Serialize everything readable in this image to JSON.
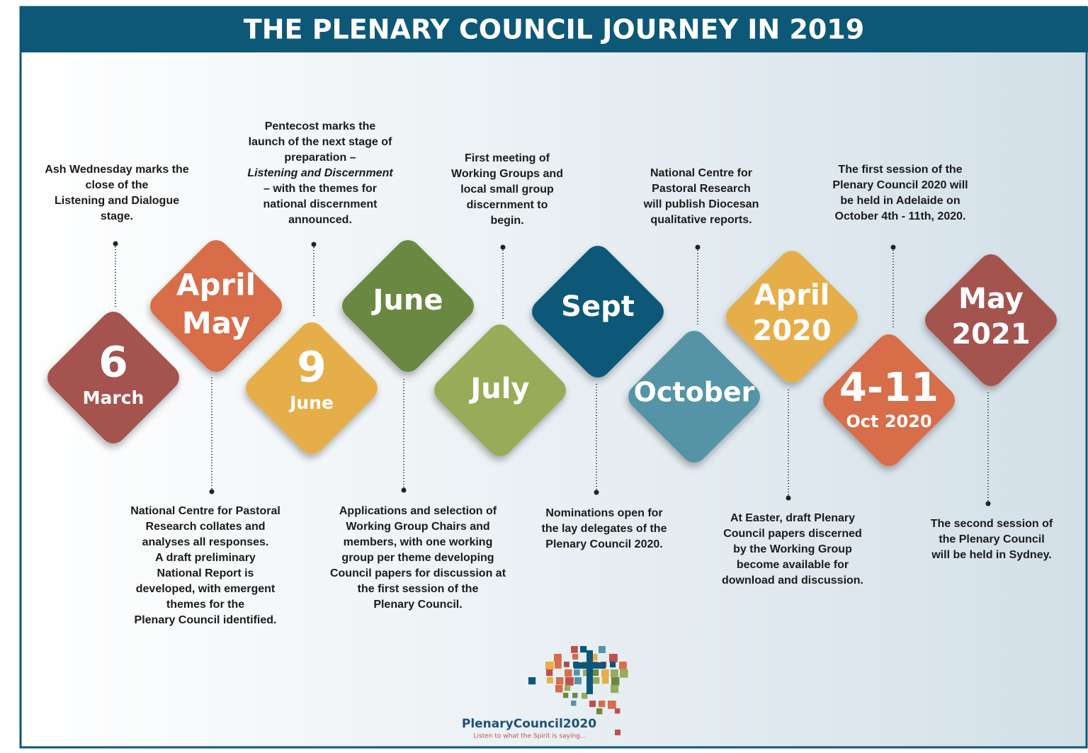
{
  "header": {
    "title": "THE PLENARY COUNCIL JOURNEY IN 2019"
  },
  "items": [
    {
      "label": [
        "6",
        "March"
      ],
      "color": "#a4524f",
      "description": [
        "Ash Wednesday marks the",
        "close of the",
        "Listening and Dialogue",
        "stage."
      ]
    },
    {
      "label": [
        "April",
        "May"
      ],
      "color": "#d76d4a",
      "description": [
        "National Centre for Pastoral",
        "Research collates and",
        "analyses all responses.",
        "A draft preliminary",
        "National Report is",
        "developed, with emergent",
        "themes for the",
        "Plenary Council identified."
      ]
    },
    {
      "label": [
        "9",
        "June"
      ],
      "color": "#e6ae48",
      "description": [
        "Pentecost marks the",
        "launch of the next stage of",
        "preparation –",
        "Listening and Discernment",
        "– with the themes for",
        "national discernment",
        "announced."
      ]
    },
    {
      "label": [
        "June"
      ],
      "color": "#6b8842",
      "description": [
        "Applications and selection of",
        "Working Group Chairs and",
        "members, with one working",
        "group per theme developing",
        "Council papers for discussion at",
        "the first session of the",
        "Plenary Council."
      ]
    },
    {
      "label": [
        "July"
      ],
      "color": "#98ab58",
      "description": [
        "First meeting of",
        "Working Groups and",
        "local small group",
        "discernment to",
        "begin."
      ]
    },
    {
      "label": [
        "Sept"
      ],
      "color": "#0d5879",
      "description": [
        "Nominations open for",
        "the lay delegates of the",
        "Plenary Council 2020."
      ]
    },
    {
      "label": [
        "October"
      ],
      "color": "#5594a6",
      "description": [
        "National Centre for",
        "Pastoral Research",
        "will publish Diocesan",
        "qualitative reports."
      ]
    },
    {
      "label": [
        "April",
        "2020"
      ],
      "color": "#e6ae48",
      "description": [
        "At Easter, draft Plenary",
        "Council papers discerned",
        "by the Working Group",
        "become available for",
        "download and discussion."
      ]
    },
    {
      "label": [
        "4-11",
        "Oct 2020"
      ],
      "color": "#d76d4a",
      "description": [
        "The first session of the",
        "Plenary Council 2020 will",
        "be held in Adelaide on",
        "October 4th - 11th, 2020."
      ]
    },
    {
      "label": [
        "May",
        "2021"
      ],
      "color": "#a4524f",
      "description": [
        "The second session of",
        "the Plenary Council",
        "will be held in Sydney."
      ]
    }
  ],
  "logo": {
    "name": "PlenaryCouncil2020",
    "tagline": "Listen to what the Spirit is saying..."
  }
}
